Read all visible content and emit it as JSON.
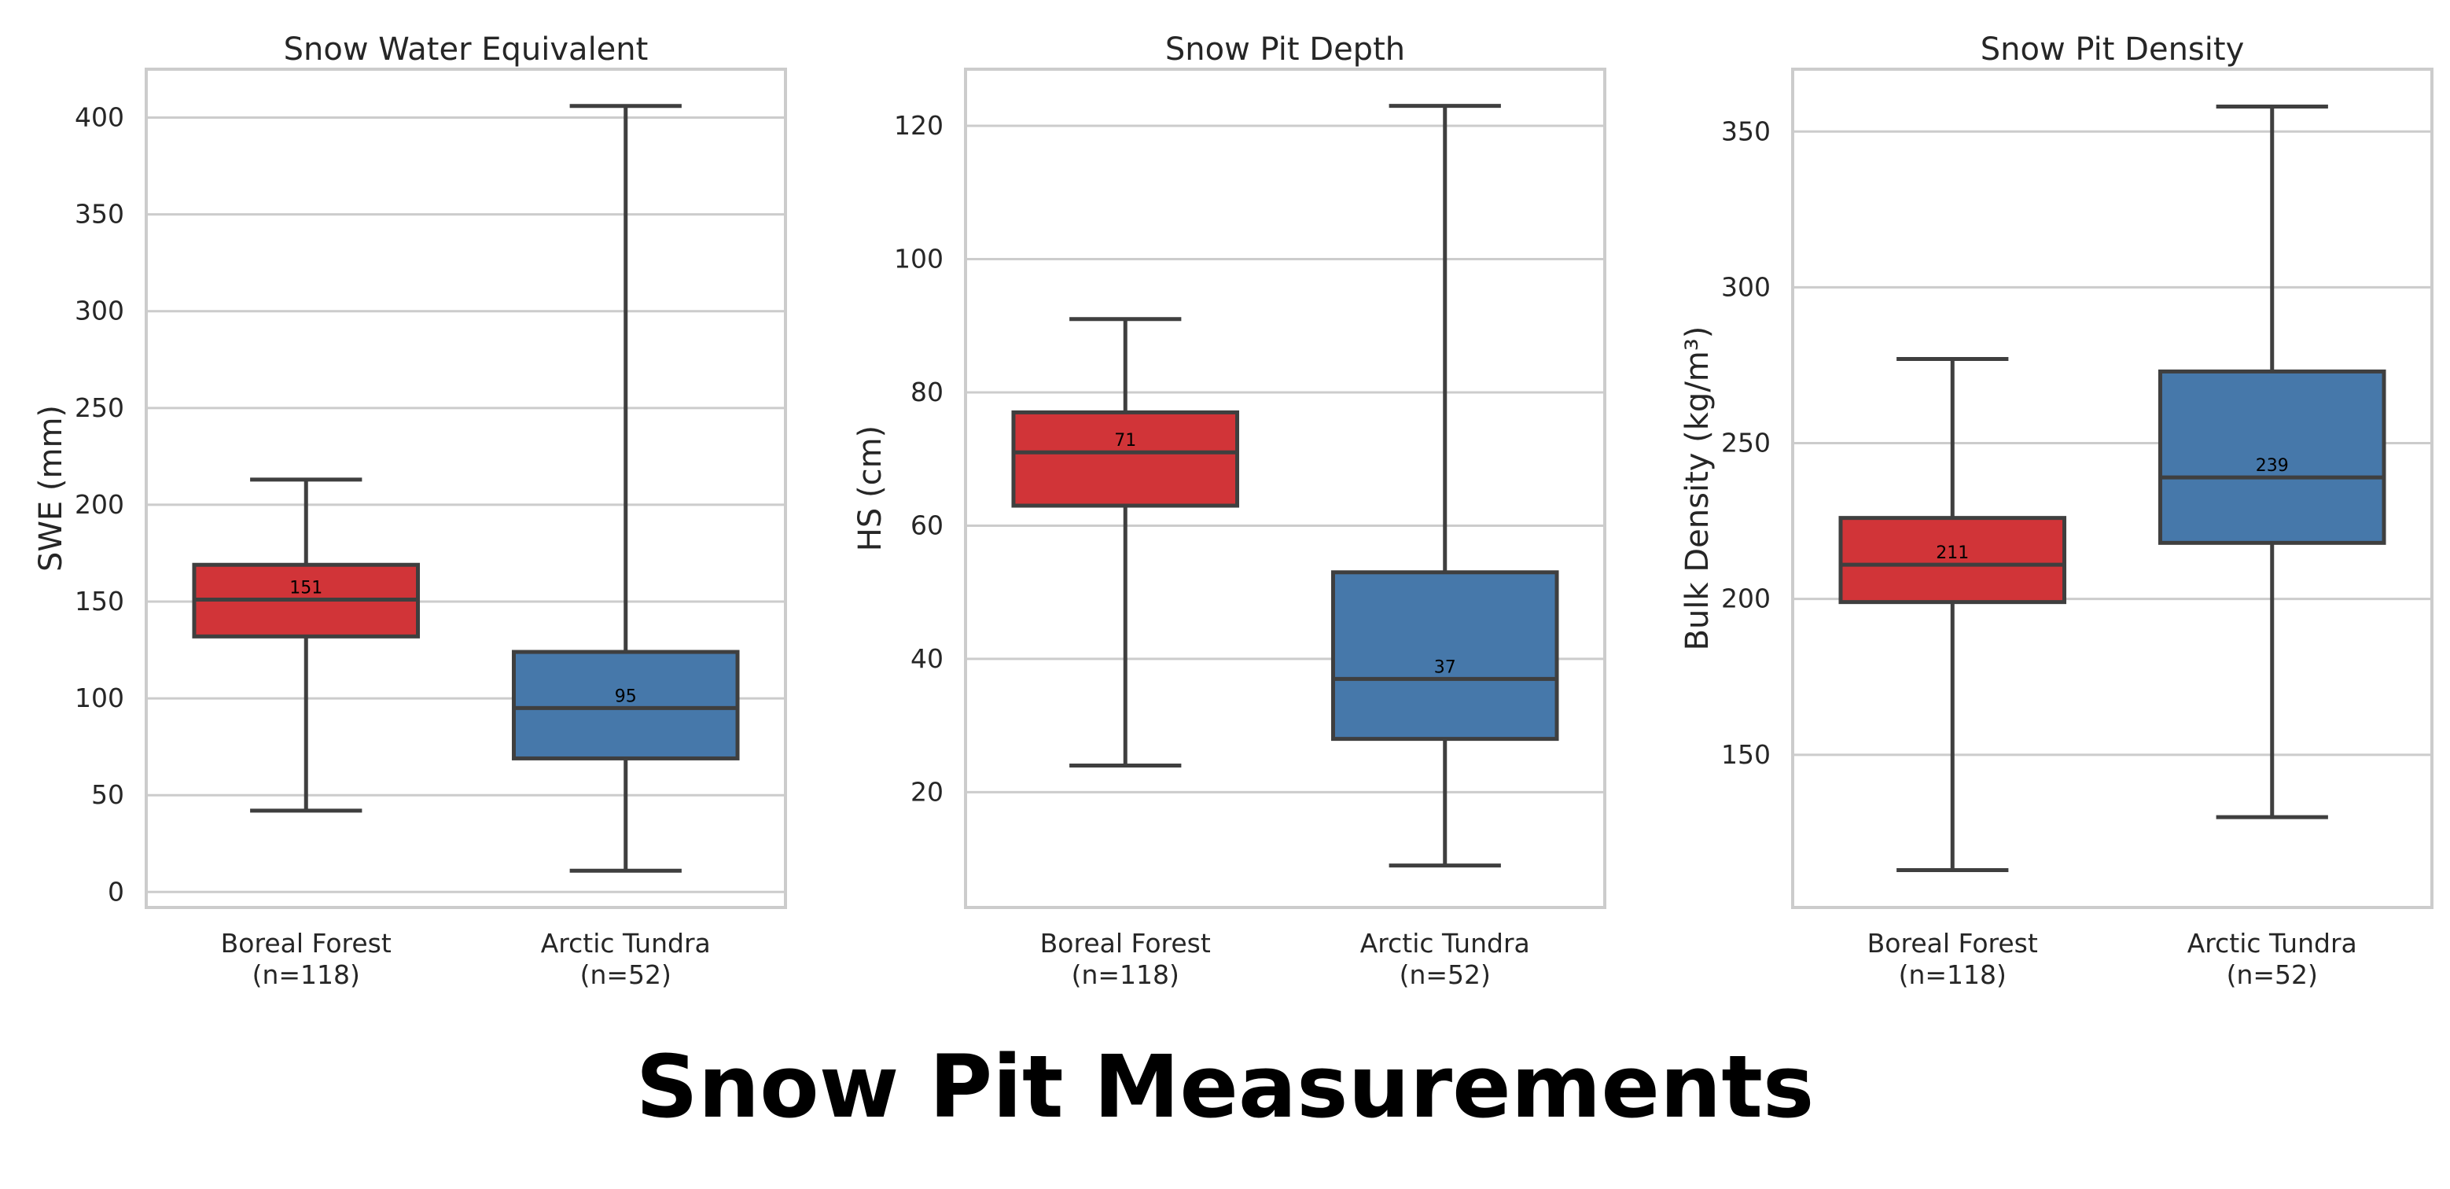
{
  "figure": {
    "suptitle": "Snow Pit Measurements"
  },
  "colors": {
    "boreal": "#d13438",
    "tundra": "#4678aa",
    "box_edge": "#3f3f3f",
    "grid": "#cccccc",
    "frame": "#cccccc"
  },
  "chart_data": [
    {
      "type": "box",
      "title": "Snow Water Equivalent",
      "ylabel": "SWE (mm)",
      "ylim": [
        -8,
        425
      ],
      "yticks": [
        0,
        50,
        100,
        150,
        200,
        250,
        300,
        350,
        400
      ],
      "grid": true,
      "categories": [
        "Boreal Forest\n(n=118)",
        "Arctic Tundra\n(n=52)"
      ],
      "boxes": [
        {
          "name": "Boreal Forest",
          "n": 118,
          "whislo": 42,
          "q1": 132,
          "med": 151,
          "q3": 169,
          "whishi": 213,
          "median_label": "151"
        },
        {
          "name": "Arctic Tundra",
          "n": 52,
          "whislo": 11,
          "q1": 69,
          "med": 95,
          "q3": 124,
          "whishi": 406,
          "median_label": "95"
        }
      ]
    },
    {
      "type": "box",
      "title": "Snow Pit Depth",
      "ylabel": "HS (cm)",
      "ylim": [
        2.7,
        128.5
      ],
      "yticks": [
        20,
        40,
        60,
        80,
        100,
        120
      ],
      "grid": true,
      "categories": [
        "Boreal Forest\n(n=118)",
        "Arctic Tundra\n(n=52)"
      ],
      "boxes": [
        {
          "name": "Boreal Forest",
          "n": 118,
          "whislo": 24,
          "q1": 63,
          "med": 71,
          "q3": 77,
          "whishi": 91,
          "median_label": "71"
        },
        {
          "name": "Arctic Tundra",
          "n": 52,
          "whislo": 9,
          "q1": 28,
          "med": 37,
          "q3": 53,
          "whishi": 123,
          "median_label": "37"
        }
      ]
    },
    {
      "type": "box",
      "title": "Snow Pit Density",
      "ylabel": "Bulk Density (kg/m³)",
      "ylim": [
        101,
        370
      ],
      "yticks": [
        150,
        200,
        250,
        300,
        350
      ],
      "grid": true,
      "categories": [
        "Boreal Forest\n(n=118)",
        "Arctic Tundra\n(n=52)"
      ],
      "boxes": [
        {
          "name": "Boreal Forest",
          "n": 118,
          "whislo": 113,
          "q1": 199,
          "med": 211,
          "q3": 226,
          "whishi": 277,
          "median_label": "211"
        },
        {
          "name": "Arctic Tundra",
          "n": 52,
          "whislo": 130,
          "q1": 218,
          "med": 239,
          "q3": 273,
          "whishi": 358,
          "median_label": "239"
        }
      ]
    }
  ]
}
